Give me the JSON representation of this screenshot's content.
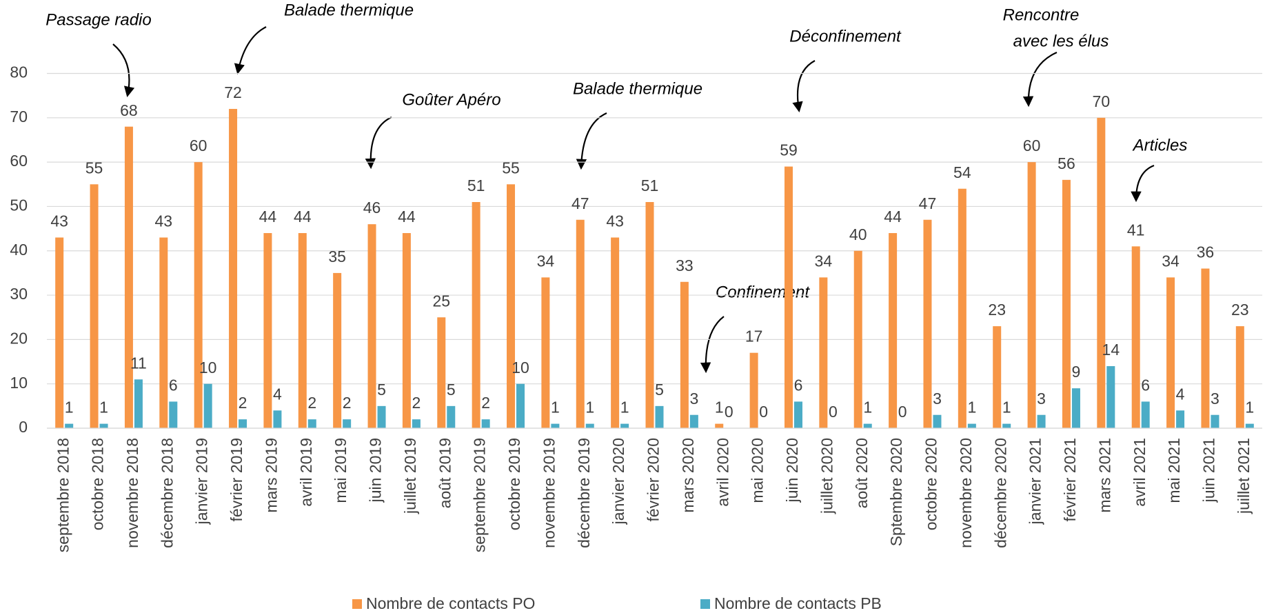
{
  "chart_data": {
    "type": "bar",
    "categories": [
      "septembre 2018",
      "octobre 2018",
      "novembre 2018",
      "décembre 2018",
      "janvier 2019",
      "février 2019",
      "mars 2019",
      "avril 2019",
      "mai 2019",
      "juin 2019",
      "juillet 2019",
      "août 2019",
      "septembre 2019",
      "octobre 2019",
      "novembre 2019",
      "décembre 2019",
      "janvier 2020",
      "février 2020",
      "mars 2020",
      "avril 2020",
      "mai 2020",
      "juin 2020",
      "juillet 2020",
      "août 2020",
      "Sptembre 2020",
      "octobre 2020",
      "novembre 2020",
      "décembre 2020",
      "janvier 2021",
      "février 2021",
      "mars 2021",
      "avril 2021",
      "mai 2021",
      "juin 2021",
      "juillet 2021"
    ],
    "series": [
      {
        "name": "Nombre de contacts PO",
        "color": "#f79646",
        "values": [
          43,
          55,
          68,
          43,
          60,
          72,
          44,
          44,
          35,
          46,
          44,
          25,
          51,
          55,
          34,
          47,
          43,
          51,
          33,
          1,
          17,
          59,
          34,
          40,
          44,
          47,
          54,
          23,
          60,
          56,
          70,
          41,
          34,
          36,
          23
        ]
      },
      {
        "name": "Nombre de contacts PB",
        "color": "#4bacc6",
        "values": [
          1,
          1,
          11,
          6,
          10,
          2,
          4,
          2,
          2,
          5,
          2,
          5,
          2,
          10,
          1,
          1,
          1,
          5,
          3,
          0,
          0,
          6,
          0,
          1,
          0,
          3,
          1,
          1,
          3,
          9,
          14,
          6,
          4,
          3,
          1
        ]
      }
    ],
    "ylim": [
      0,
      80
    ],
    "yticks": [
      0,
      10,
      20,
      30,
      40,
      50,
      60,
      70,
      80
    ],
    "grid": true,
    "legend": "bottom",
    "annotations": [
      "Passage radio",
      "Balade thermique",
      "Goûter Apéro",
      "Balade thermique",
      "Confinement",
      "Déconfinement",
      [
        "Rencontre",
        "avec les élus"
      ],
      "Articles"
    ]
  }
}
